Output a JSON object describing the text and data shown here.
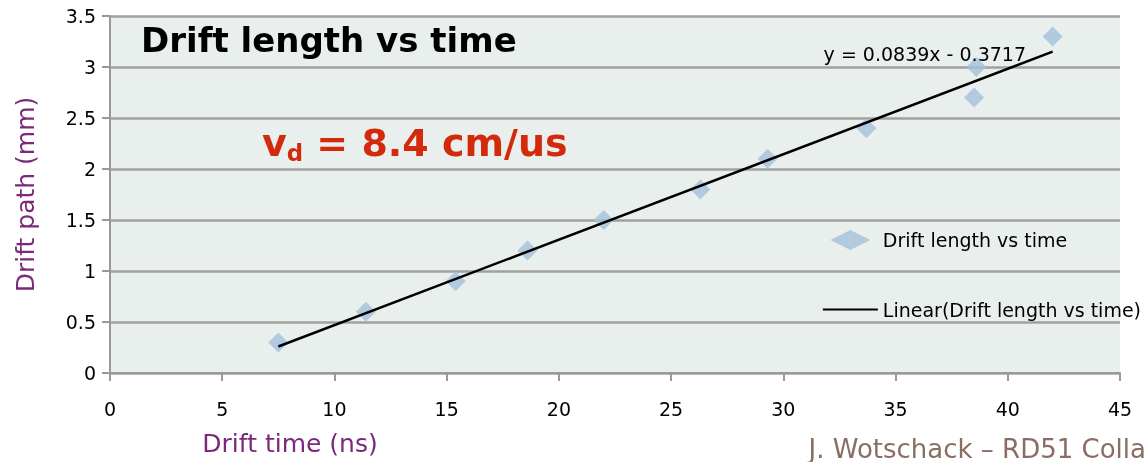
{
  "chart_data": {
    "type": "scatter",
    "title": "Drift length vs time",
    "xlabel": "Drift time (ns)",
    "ylabel": "Drift path (mm)",
    "annotations": [
      "y = 0.0839x - 0.3717",
      "v$_{d}$ = 8.4 cm/us",
      "J. Wotschack – RD51 Colla"
    ],
    "series": [
      {
        "name": "Drift length vs time",
        "color": "#a4c1dc",
        "marker": "diamond",
        "x": [
          7.5,
          11.4,
          15.4,
          18.6,
          22,
          26.3,
          29.3,
          33.7,
          38.6,
          38.5,
          42
        ],
        "values": [
          0.3,
          0.6,
          0.9,
          1.2,
          1.5,
          1.8,
          2.1,
          2.4,
          3.0,
          2.7,
          3.3
        ]
      },
      {
        "name": "Linear(Drift length vs time)",
        "type": "line",
        "color": "#000000",
        "marker": "none",
        "line_style": "solid",
        "x": [
          7.5,
          42
        ],
        "values": [
          0.26,
          3.15
        ]
      }
    ],
    "xlim": [
      0,
      45
    ],
    "xticks": [
      0,
      5,
      10,
      15,
      20,
      25,
      30,
      35,
      40,
      45
    ],
    "ylim": [
      0,
      3.5
    ],
    "yticks": [
      0,
      0.5,
      1,
      1.5,
      2,
      2.5,
      3,
      3.5
    ],
    "grid": "y",
    "legend": "right"
  }
}
